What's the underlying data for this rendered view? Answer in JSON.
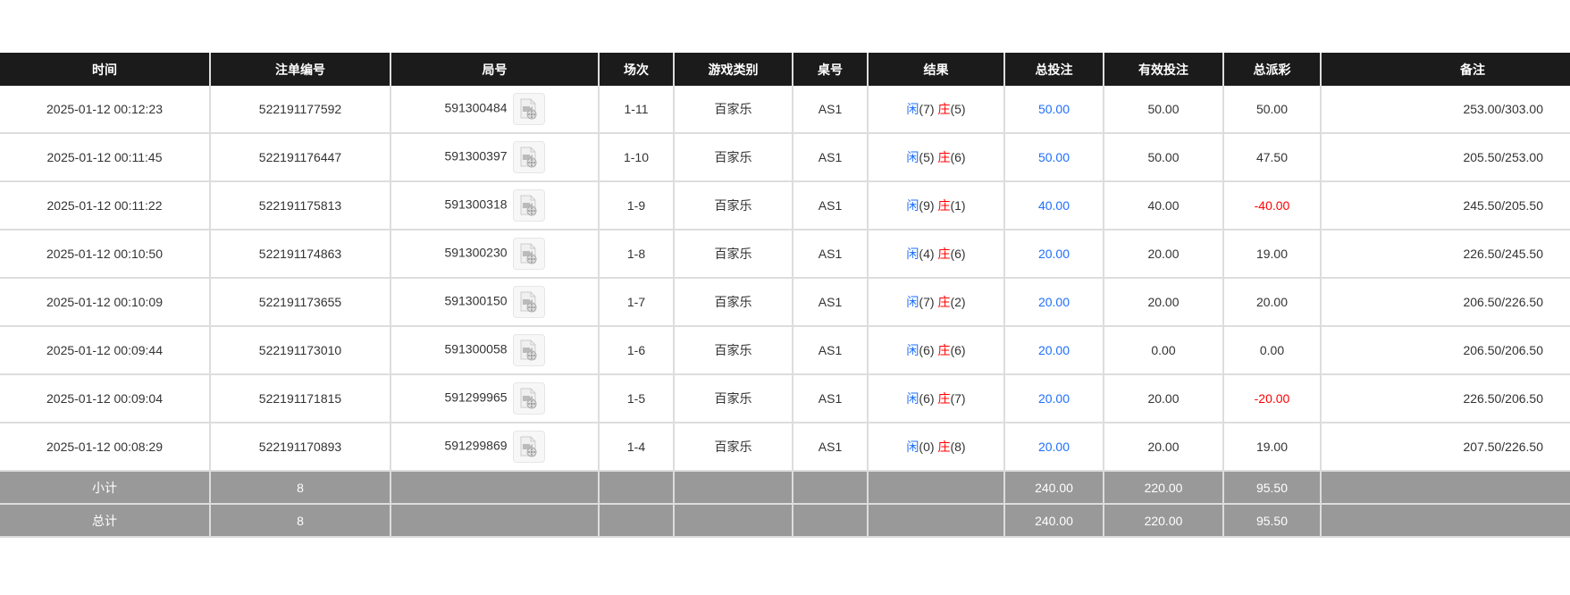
{
  "headers": [
    "时间",
    "注单编号",
    "局号",
    "场次",
    "游戏类别",
    "桌号",
    "结果",
    "总投注",
    "有效投注",
    "总派彩",
    "备注"
  ],
  "result_labels": {
    "player": "闲",
    "banker": "庄"
  },
  "colors": {
    "header_bg": "#1b1b1b",
    "player": "#1e6fff",
    "banker": "#ff0000",
    "total_bet": "#1e6fff",
    "negative": "#ff0000",
    "summary_bg": "#999999"
  },
  "rows": [
    {
      "time": "2025-01-12 00:12:23",
      "bet_id": "522191177592",
      "round": "591300484",
      "shoe": "1-11",
      "game": "百家乐",
      "table": "AS1",
      "player": "(7)",
      "banker": "(5)",
      "total_bet": "50.00",
      "valid_bet": "50.00",
      "payout": "50.00",
      "payout_negative": false,
      "remark": "253.00/303.00"
    },
    {
      "time": "2025-01-12 00:11:45",
      "bet_id": "522191176447",
      "round": "591300397",
      "shoe": "1-10",
      "game": "百家乐",
      "table": "AS1",
      "player": "(5)",
      "banker": "(6)",
      "total_bet": "50.00",
      "valid_bet": "50.00",
      "payout": "47.50",
      "payout_negative": false,
      "remark": "205.50/253.00"
    },
    {
      "time": "2025-01-12 00:11:22",
      "bet_id": "522191175813",
      "round": "591300318",
      "shoe": "1-9",
      "game": "百家乐",
      "table": "AS1",
      "player": "(9)",
      "banker": "(1)",
      "total_bet": "40.00",
      "valid_bet": "40.00",
      "payout": "-40.00",
      "payout_negative": true,
      "remark": "245.50/205.50"
    },
    {
      "time": "2025-01-12 00:10:50",
      "bet_id": "522191174863",
      "round": "591300230",
      "shoe": "1-8",
      "game": "百家乐",
      "table": "AS1",
      "player": "(4)",
      "banker": "(6)",
      "total_bet": "20.00",
      "valid_bet": "20.00",
      "payout": "19.00",
      "payout_negative": false,
      "remark": "226.50/245.50"
    },
    {
      "time": "2025-01-12 00:10:09",
      "bet_id": "522191173655",
      "round": "591300150",
      "shoe": "1-7",
      "game": "百家乐",
      "table": "AS1",
      "player": "(7)",
      "banker": "(2)",
      "total_bet": "20.00",
      "valid_bet": "20.00",
      "payout": "20.00",
      "payout_negative": false,
      "remark": "206.50/226.50"
    },
    {
      "time": "2025-01-12 00:09:44",
      "bet_id": "522191173010",
      "round": "591300058",
      "shoe": "1-6",
      "game": "百家乐",
      "table": "AS1",
      "player": "(6)",
      "banker": "(6)",
      "total_bet": "20.00",
      "valid_bet": "0.00",
      "payout": "0.00",
      "payout_negative": false,
      "remark": "206.50/206.50"
    },
    {
      "time": "2025-01-12 00:09:04",
      "bet_id": "522191171815",
      "round": "591299965",
      "shoe": "1-5",
      "game": "百家乐",
      "table": "AS1",
      "player": "(6)",
      "banker": "(7)",
      "total_bet": "20.00",
      "valid_bet": "20.00",
      "payout": "-20.00",
      "payout_negative": true,
      "remark": "226.50/206.50"
    },
    {
      "time": "2025-01-12 00:08:29",
      "bet_id": "522191170893",
      "round": "591299869",
      "shoe": "1-4",
      "game": "百家乐",
      "table": "AS1",
      "player": "(0)",
      "banker": "(8)",
      "total_bet": "20.00",
      "valid_bet": "20.00",
      "payout": "19.00",
      "payout_negative": false,
      "remark": "207.50/226.50"
    }
  ],
  "summary": [
    {
      "label": "小计",
      "count": "8",
      "total_bet": "240.00",
      "valid_bet": "220.00",
      "payout": "95.50"
    },
    {
      "label": "总计",
      "count": "8",
      "total_bet": "240.00",
      "valid_bet": "220.00",
      "payout": "95.50"
    }
  ]
}
